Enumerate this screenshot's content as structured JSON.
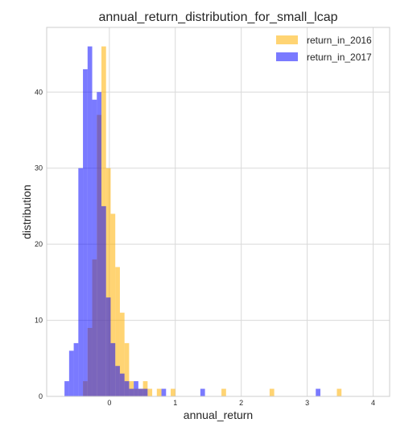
{
  "chart_data": {
    "type": "bar",
    "title": "annual_return_distribution_for_small_lcap",
    "xlabel": "annual_return",
    "ylabel": "distribution",
    "xlim": [
      -0.95,
      4.25
    ],
    "ylim": [
      0,
      48.5
    ],
    "xticks": [
      0,
      1,
      2,
      3,
      4
    ],
    "yticks": [
      0,
      10,
      20,
      30,
      40
    ],
    "grid": true,
    "legend_position": "top-right",
    "bin_width": 0.07,
    "series": [
      {
        "name": "return_in_2016",
        "color": "#ffb000",
        "alpha": 0.55,
        "bins": [
          [
            -0.4,
            2
          ],
          [
            -0.33,
            9
          ],
          [
            -0.26,
            18
          ],
          [
            -0.19,
            37
          ],
          [
            -0.12,
            46
          ],
          [
            -0.05,
            30
          ],
          [
            0.02,
            24
          ],
          [
            0.09,
            17
          ],
          [
            0.16,
            11
          ],
          [
            0.23,
            7
          ],
          [
            0.3,
            2
          ],
          [
            0.37,
            1
          ],
          [
            0.44,
            1
          ],
          [
            0.51,
            2
          ],
          [
            0.58,
            1
          ],
          [
            0.72,
            1
          ],
          [
            0.93,
            1
          ],
          [
            1.7,
            1
          ],
          [
            2.43,
            1
          ],
          [
            3.45,
            1
          ]
        ]
      },
      {
        "name": "return_in_2017",
        "color": "#0000ff",
        "alpha": 0.52,
        "bins": [
          [
            -0.68,
            2
          ],
          [
            -0.61,
            6
          ],
          [
            -0.54,
            7
          ],
          [
            -0.47,
            30
          ],
          [
            -0.4,
            43
          ],
          [
            -0.33,
            46
          ],
          [
            -0.26,
            39
          ],
          [
            -0.19,
            40
          ],
          [
            -0.12,
            25
          ],
          [
            -0.05,
            13
          ],
          [
            0.02,
            7
          ],
          [
            0.09,
            4
          ],
          [
            0.16,
            3
          ],
          [
            0.23,
            2
          ],
          [
            0.3,
            1
          ],
          [
            0.37,
            2
          ],
          [
            0.44,
            1
          ],
          [
            0.51,
            1
          ],
          [
            0.79,
            1
          ],
          [
            1.38,
            1
          ],
          [
            3.13,
            1
          ]
        ]
      }
    ]
  }
}
